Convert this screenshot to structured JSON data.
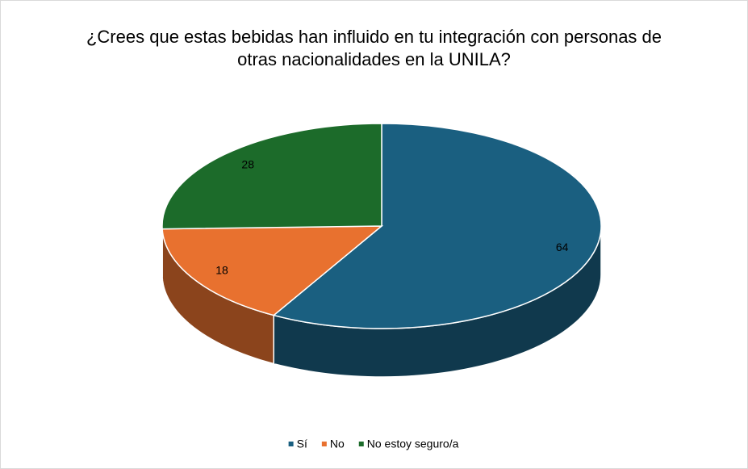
{
  "chart_data": {
    "type": "pie",
    "title": "¿Crees que estas bebidas han influido en tu integración con personas de otras nacionalidades en la UNILA?",
    "categories": [
      "Sí",
      "No",
      "No estoy seguro/a"
    ],
    "values": [
      64,
      18,
      28
    ],
    "colors": [
      "#1a5f80",
      "#e8712f",
      "#1c6b2a"
    ],
    "legend": "bottom"
  }
}
